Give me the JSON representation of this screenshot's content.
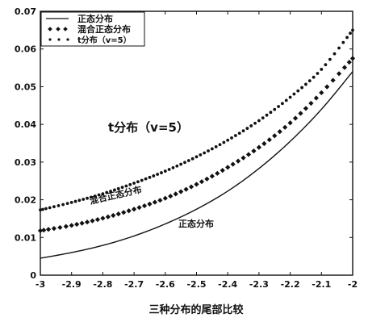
{
  "chart_data": {
    "type": "line",
    "title": "",
    "xlabel": "三种分布的尾部比较",
    "ylabel": "",
    "xlim": [
      -3,
      -2
    ],
    "ylim": [
      0,
      0.07
    ],
    "x_ticks": [
      -3,
      -2.9,
      -2.8,
      -2.7,
      -2.6,
      -2.5,
      -2.4,
      -2.3,
      -2.2,
      -2.1,
      -2
    ],
    "x_tick_labels": [
      "-3",
      "-2.9",
      "-2.8",
      "-2.7",
      "-2.6",
      "-2.5",
      "-2.4",
      "-2.3",
      "-2.2",
      "-2.1",
      "-2"
    ],
    "y_ticks": [
      0,
      0.01,
      0.02,
      0.03,
      0.04,
      0.05,
      0.06,
      0.07
    ],
    "y_tick_labels": [
      "0",
      "0.01",
      "0.02",
      "0.03",
      "0.04",
      "0.05",
      "0.06",
      "0.07"
    ],
    "grid": false,
    "legend": {
      "placement": "top-left",
      "entries": [
        "正态分布",
        "混合正态分布",
        "t分布（v=5）"
      ]
    },
    "annotations": {
      "t_label": "t分布（v=5）",
      "mixed_label": "混合正态分布",
      "normal_label": "正态分布"
    },
    "series": [
      {
        "name": "正态分布",
        "style": "line",
        "color": "#111111",
        "x": [
          -3,
          -2.9,
          -2.8,
          -2.7,
          -2.6,
          -2.5,
          -2.4,
          -2.3,
          -2.2,
          -2.1,
          -2
        ],
        "values": [
          0.0045,
          0.006,
          0.0079,
          0.0104,
          0.0136,
          0.0175,
          0.0223,
          0.0283,
          0.0355,
          0.044,
          0.054
        ]
      },
      {
        "name": "混合正态分布",
        "style": "diamond-markers",
        "color": "#111111",
        "x": [
          -3,
          -2.9,
          -2.8,
          -2.7,
          -2.6,
          -2.5,
          -2.4,
          -2.3,
          -2.2,
          -2.1,
          -2
        ],
        "values": [
          0.0118,
          0.0132,
          0.0151,
          0.0175,
          0.0204,
          0.0241,
          0.0286,
          0.0339,
          0.0404,
          0.0484,
          0.0575
        ]
      },
      {
        "name": "t分布（v=5）",
        "style": "dots",
        "color": "#111111",
        "x": [
          -3,
          -2.9,
          -2.8,
          -2.7,
          -2.6,
          -2.5,
          -2.4,
          -2.3,
          -2.2,
          -2.1,
          -2
        ],
        "values": [
          0.0173,
          0.0193,
          0.0216,
          0.0244,
          0.0276,
          0.0314,
          0.0358,
          0.041,
          0.0472,
          0.0546,
          0.065
        ]
      }
    ]
  }
}
